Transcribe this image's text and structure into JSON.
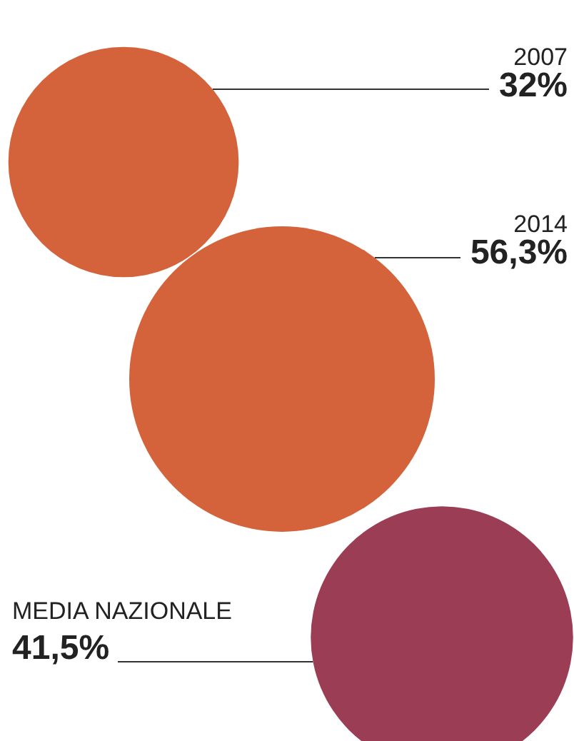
{
  "chart_data": {
    "type": "other",
    "categories": [
      "2007",
      "2014",
      "MEDIA NAZIONALE"
    ],
    "values": [
      32,
      56.3,
      41.5
    ],
    "value_labels": [
      "32%",
      "56,3%",
      "41,5%"
    ],
    "colors": [
      "#d4623a",
      "#d4623a",
      "#9b3d55"
    ]
  }
}
